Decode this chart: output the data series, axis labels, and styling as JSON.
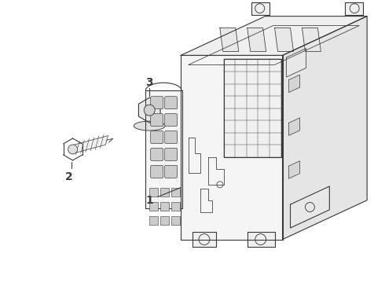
{
  "bg_color": "#ffffff",
  "line_color": "#3a3a3a",
  "fig_width": 4.9,
  "fig_height": 3.6,
  "dpi": 100,
  "label_1": "1",
  "label_2": "2",
  "label_3": "3",
  "lw": 0.8
}
